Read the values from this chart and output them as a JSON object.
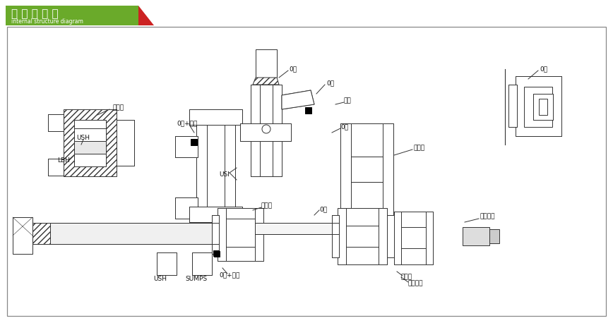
{
  "title_cn": "内 部 结 构 图",
  "title_en": "internal structure diagram",
  "title_bg": "#6aaa2a",
  "title_red": "#cc2222",
  "bg_color": "#ffffff",
  "line_color": "#333333",
  "labels": {
    "guide_ring_top_left": "导向环",
    "ush_top_left": "USH",
    "lbh": "LBH",
    "o_ring_white_top_left": "0圈+白垫",
    "usi": "USI",
    "o_ring_bottom_left": "0圈",
    "guide_ring_bottom": "导向环",
    "ush_bottom": "USH",
    "sumps": "SUMPS",
    "o_ring_bottom2": "0圈+白垫",
    "o_ring_piston": "0圈",
    "o_ring_top_center": "0圈",
    "o_ring_upper_center": "0圈",
    "bai_dian": "白垫",
    "o_ring_mid": "0圈",
    "huan_chong_quan": "缓冲圈",
    "o_ring_top_right": "0圈",
    "guide_ring_right": "导向环",
    "qi_feng_ping_dian": "气封平垫",
    "huan_chong_zhu_sai": "缓冲柱塞"
  }
}
